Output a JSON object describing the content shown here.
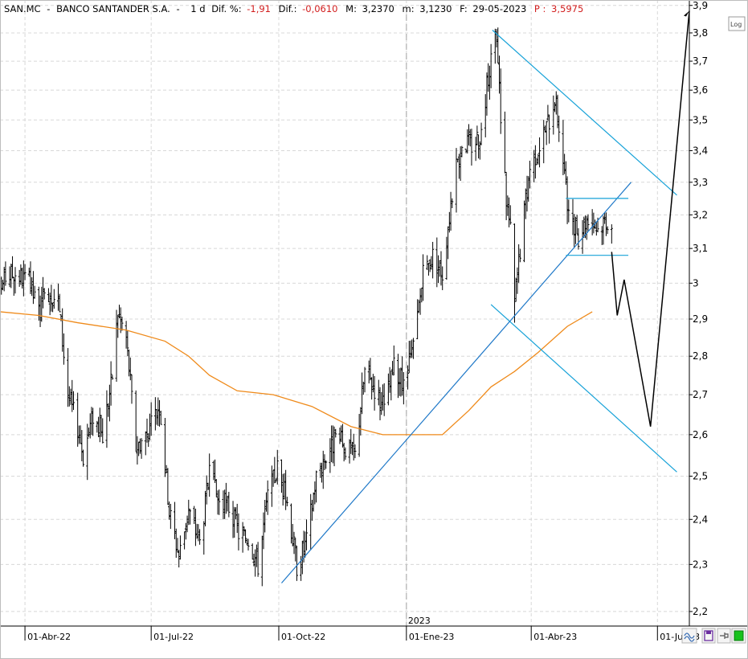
{
  "header": {
    "symbol": "SAN.MC",
    "sep1": "-",
    "name": "BANCO SANTANDER S.A.",
    "sep2": "-",
    "interval": "1 d",
    "dif_pct_label": "Dif. %:",
    "dif_pct_value": "-1,91",
    "dif_label": "Dif.:",
    "dif_value": "-0,0610",
    "max_label": "M:",
    "max_value": "3,2370",
    "min_label": "m:",
    "min_value": "3,1230",
    "date_label": "F:",
    "date_value": "29-05-2023",
    "p_label": "P :",
    "p_value": "3,5975"
  },
  "toolbar": {
    "log_label": "Log"
  },
  "chart_data": {
    "type": "ohlc",
    "y_scale": "log",
    "ylim": [
      2.17,
      3.92
    ],
    "y_ticks": [
      "3,9",
      "3,8",
      "3,7",
      "3,6",
      "3,5",
      "3,4",
      "3,3",
      "3,2",
      "3,1",
      "3",
      "2,9",
      "2,8",
      "2,7",
      "2,6",
      "2,5",
      "2,4",
      "2,3",
      "2,2"
    ],
    "y_tick_values": [
      3.9,
      3.8,
      3.7,
      3.6,
      3.5,
      3.4,
      3.3,
      3.2,
      3.1,
      3.0,
      2.9,
      2.8,
      2.7,
      2.6,
      2.5,
      2.4,
      2.3,
      2.2
    ],
    "x_range": [
      "2022-03-14",
      "2023-07-24"
    ],
    "x_ticks": [
      {
        "label": "01-Abr-22",
        "date": "2022-04-01"
      },
      {
        "label": "01-Jul-22",
        "date": "2022-07-01"
      },
      {
        "label": "01-Oct-22",
        "date": "2022-10-01"
      },
      {
        "label": "01-Ene-23",
        "date": "2023-01-01"
      },
      {
        "label": "01-Abr-23",
        "date": "2023-04-01"
      },
      {
        "label": "01-Jul-23",
        "date": "2023-07-01"
      }
    ],
    "year_divider": {
      "label": "2023",
      "date": "2023-01-01"
    },
    "price_anchors": [
      [
        "2022-03-14",
        2.98
      ],
      [
        "2022-03-18",
        3.02
      ],
      [
        "2022-03-25",
        3.03
      ],
      [
        "2022-04-04",
        3.0
      ],
      [
        "2022-04-11",
        2.92
      ],
      [
        "2022-04-18",
        2.98
      ],
      [
        "2022-04-25",
        2.95
      ],
      [
        "2022-05-02",
        2.7
      ],
      [
        "2022-05-09",
        2.62
      ],
      [
        "2022-05-13",
        2.55
      ],
      [
        "2022-05-20",
        2.65
      ],
      [
        "2022-05-27",
        2.6
      ],
      [
        "2022-06-03",
        2.75
      ],
      [
        "2022-06-07",
        2.92
      ],
      [
        "2022-06-13",
        2.85
      ],
      [
        "2022-06-20",
        2.57
      ],
      [
        "2022-06-27",
        2.6
      ],
      [
        "2022-07-01",
        2.62
      ],
      [
        "2022-07-07",
        2.68
      ],
      [
        "2022-07-14",
        2.42
      ],
      [
        "2022-07-21",
        2.32
      ],
      [
        "2022-07-28",
        2.42
      ],
      [
        "2022-08-05",
        2.35
      ],
      [
        "2022-08-12",
        2.5
      ],
      [
        "2022-08-19",
        2.44
      ],
      [
        "2022-08-26",
        2.43
      ],
      [
        "2022-09-02",
        2.37
      ],
      [
        "2022-09-09",
        2.36
      ],
      [
        "2022-09-16",
        2.3
      ],
      [
        "2022-09-23",
        2.45
      ],
      [
        "2022-09-30",
        2.52
      ],
      [
        "2022-10-07",
        2.44
      ],
      [
        "2022-10-14",
        2.3
      ],
      [
        "2022-10-21",
        2.35
      ],
      [
        "2022-10-28",
        2.5
      ],
      [
        "2022-11-04",
        2.55
      ],
      [
        "2022-11-11",
        2.59
      ],
      [
        "2022-11-18",
        2.57
      ],
      [
        "2022-11-25",
        2.55
      ],
      [
        "2022-12-02",
        2.76
      ],
      [
        "2022-12-09",
        2.72
      ],
      [
        "2022-12-16",
        2.66
      ],
      [
        "2022-12-23",
        2.77
      ],
      [
        "2022-12-30",
        2.72
      ],
      [
        "2023-01-06",
        2.82
      ],
      [
        "2023-01-13",
        3.02
      ],
      [
        "2023-01-20",
        3.08
      ],
      [
        "2023-01-27",
        3.03
      ],
      [
        "2023-02-03",
        3.27
      ],
      [
        "2023-02-10",
        3.43
      ],
      [
        "2023-02-17",
        3.42
      ],
      [
        "2023-02-24",
        3.46
      ],
      [
        "2023-03-03",
        3.72
      ],
      [
        "2023-03-07",
        3.77
      ],
      [
        "2023-03-10",
        3.52
      ],
      [
        "2023-03-14",
        3.25
      ],
      [
        "2023-03-17",
        3.15
      ],
      [
        "2023-03-20",
        2.95
      ],
      [
        "2023-03-24",
        3.1
      ],
      [
        "2023-03-31",
        3.35
      ],
      [
        "2023-04-07",
        3.42
      ],
      [
        "2023-04-14",
        3.5
      ],
      [
        "2023-04-18",
        3.58
      ],
      [
        "2023-04-21",
        3.48
      ],
      [
        "2023-04-25",
        3.33
      ],
      [
        "2023-04-28",
        3.18
      ],
      [
        "2023-05-05",
        3.14
      ],
      [
        "2023-05-12",
        3.2
      ],
      [
        "2023-05-19",
        3.16
      ],
      [
        "2023-05-25",
        3.19
      ],
      [
        "2023-05-29",
        3.17
      ]
    ],
    "moving_average": [
      [
        "2022-03-14",
        2.92
      ],
      [
        "2022-04-11",
        2.91
      ],
      [
        "2022-05-09",
        2.89
      ],
      [
        "2022-06-13",
        2.87
      ],
      [
        "2022-07-11",
        2.84
      ],
      [
        "2022-07-28",
        2.8
      ],
      [
        "2022-08-12",
        2.75
      ],
      [
        "2022-09-01",
        2.71
      ],
      [
        "2022-09-27",
        2.7
      ],
      [
        "2022-10-25",
        2.67
      ],
      [
        "2022-11-22",
        2.62
      ],
      [
        "2022-12-15",
        2.6
      ],
      [
        "2023-01-06",
        2.6
      ],
      [
        "2023-01-27",
        2.6
      ],
      [
        "2023-02-15",
        2.66
      ],
      [
        "2023-03-03",
        2.72
      ],
      [
        "2023-03-20",
        2.76
      ],
      [
        "2023-04-06",
        2.81
      ],
      [
        "2023-04-27",
        2.88
      ],
      [
        "2023-05-15",
        2.92
      ]
    ],
    "trendlines": [
      {
        "name": "upper-channel",
        "color": "#17a2d8",
        "points": [
          [
            "2023-03-04",
            3.81
          ],
          [
            "2023-07-15",
            3.26
          ]
        ]
      },
      {
        "name": "lower-channel",
        "color": "#17a2d8",
        "points": [
          [
            "2023-03-03",
            2.94
          ],
          [
            "2023-07-15",
            2.51
          ]
        ]
      },
      {
        "name": "support",
        "color": "#1e78c8",
        "points": [
          [
            "2022-10-03",
            2.26
          ],
          [
            "2023-06-12",
            3.3
          ]
        ]
      },
      {
        "name": "range-top",
        "color": "#17a2d8",
        "points": [
          [
            "2023-04-26",
            3.25
          ],
          [
            "2023-06-10",
            3.25
          ]
        ]
      },
      {
        "name": "range-bottom",
        "color": "#17a2d8",
        "points": [
          [
            "2023-04-26",
            3.08
          ],
          [
            "2023-06-10",
            3.08
          ]
        ]
      }
    ],
    "projection": [
      [
        "2023-05-29",
        3.09
      ],
      [
        "2023-06-02",
        2.91
      ],
      [
        "2023-06-07",
        3.01
      ],
      [
        "2023-06-26",
        2.62
      ],
      [
        "2023-07-24",
        3.88
      ]
    ],
    "colors": {
      "bars": "#000000",
      "moving_average": "#ef8a1a",
      "projection": "#000000",
      "grid": "#d8d8d8"
    }
  }
}
